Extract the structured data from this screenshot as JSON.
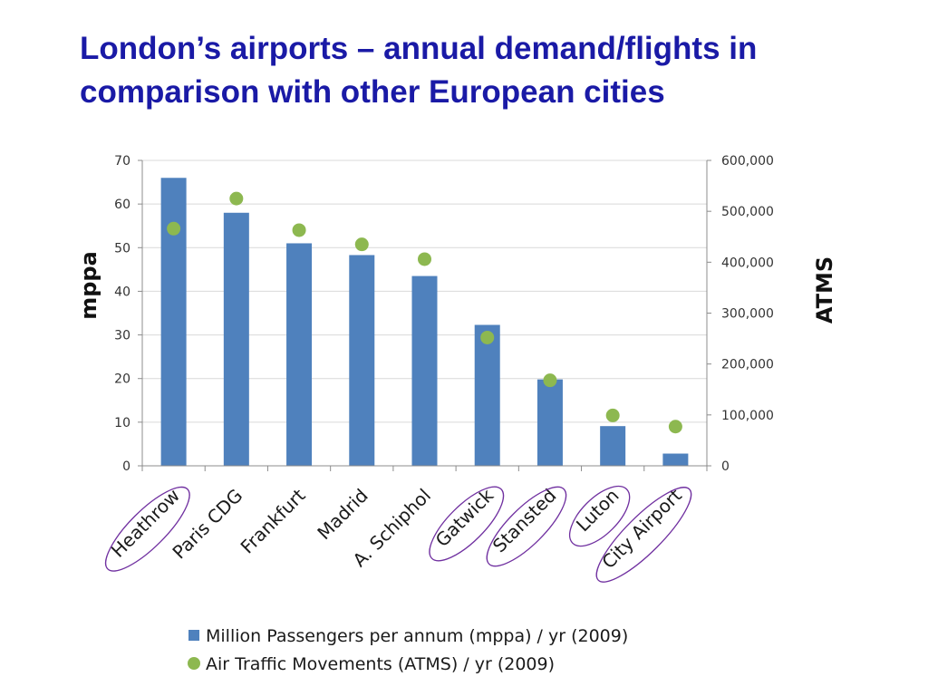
{
  "slide": {
    "title_line1": "London’s airports – annual demand/flights in",
    "title_line2": "comparison with other European cities"
  },
  "colors": {
    "title": "#1a1aa6",
    "bar": "#4f81bd",
    "dot": "#8db850",
    "ellipse": "#7030a0",
    "grid": "#d9d9d9",
    "axis": "#8c8c8c"
  },
  "chart_data": {
    "type": "bar",
    "categories": [
      "Heathrow",
      "Paris CDG",
      "Frankfurt",
      "Madrid",
      "A. Schiphol",
      "Gatwick",
      "Stansted",
      "Luton",
      "City Airport"
    ],
    "circled_categories": [
      "Heathrow",
      "Gatwick",
      "Stansted",
      "Luton",
      "City Airport"
    ],
    "series": [
      {
        "name": "Million Passengers per annum (mppa) / yr (2009)",
        "type": "bar",
        "axis": "left",
        "values": [
          66,
          58,
          51,
          48.3,
          43.5,
          32.3,
          19.8,
          9.1,
          2.8
        ]
      },
      {
        "name": "Air Traffic Movements (ATMS) / yr (2009)",
        "type": "scatter",
        "axis": "right",
        "values": [
          466000,
          525000,
          463000,
          435000,
          406000,
          252000,
          168000,
          99000,
          77000
        ]
      }
    ],
    "ylabel": "mppa",
    "y2label": "ATMS",
    "ylim": [
      0,
      70
    ],
    "y2lim": [
      0,
      600000
    ],
    "yticks": [
      "0",
      "10",
      "20",
      "30",
      "40",
      "50",
      "60",
      "70"
    ],
    "y2ticks": [
      "0",
      "100,000",
      "200,000",
      "300,000",
      "400,000",
      "500,000",
      "600,000"
    ],
    "grid": true,
    "legend_position": "bottom"
  }
}
